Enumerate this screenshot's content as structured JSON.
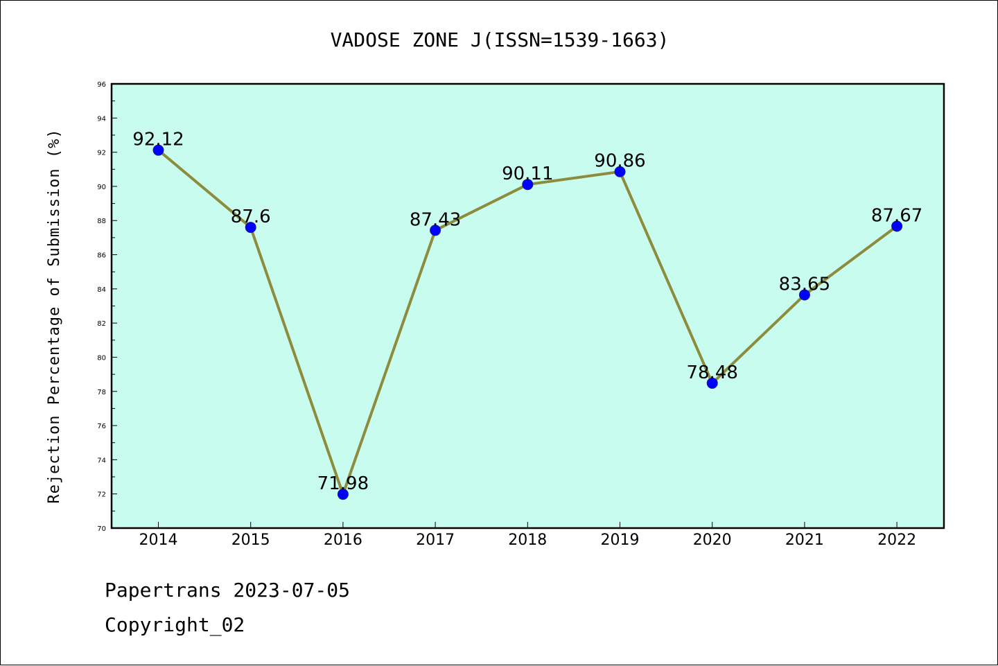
{
  "chart_data": {
    "type": "line",
    "title": "VADOSE ZONE J(ISSN=1539-1663)",
    "xlabel": "",
    "ylabel": "Rejection Percentage of Submission (%)",
    "categories": [
      "2014",
      "2015",
      "2016",
      "2017",
      "2018",
      "2019",
      "2020",
      "2021",
      "2022"
    ],
    "series": [
      {
        "values": [
          92.12,
          87.6,
          71.98,
          87.43,
          90.11,
          90.86,
          78.48,
          83.65,
          87.67
        ],
        "labels": [
          "92.12",
          "87.6",
          "71.98",
          "87.43",
          "90.11",
          "90.86",
          "78.48",
          "83.65",
          "87.67"
        ]
      }
    ],
    "ylim": [
      70,
      96
    ],
    "yticks": [
      "70",
      "72",
      "74",
      "76",
      "78",
      "80",
      "82",
      "84",
      "86",
      "88",
      "90",
      "92",
      "94",
      "96"
    ],
    "grid": false,
    "colors": {
      "plot_background": "#c8fcee",
      "line": "#8c8c3c",
      "marker": "#0000ff"
    }
  },
  "footer": {
    "line1": "Papertrans 2023-07-05",
    "line2": "Copyright_02"
  }
}
